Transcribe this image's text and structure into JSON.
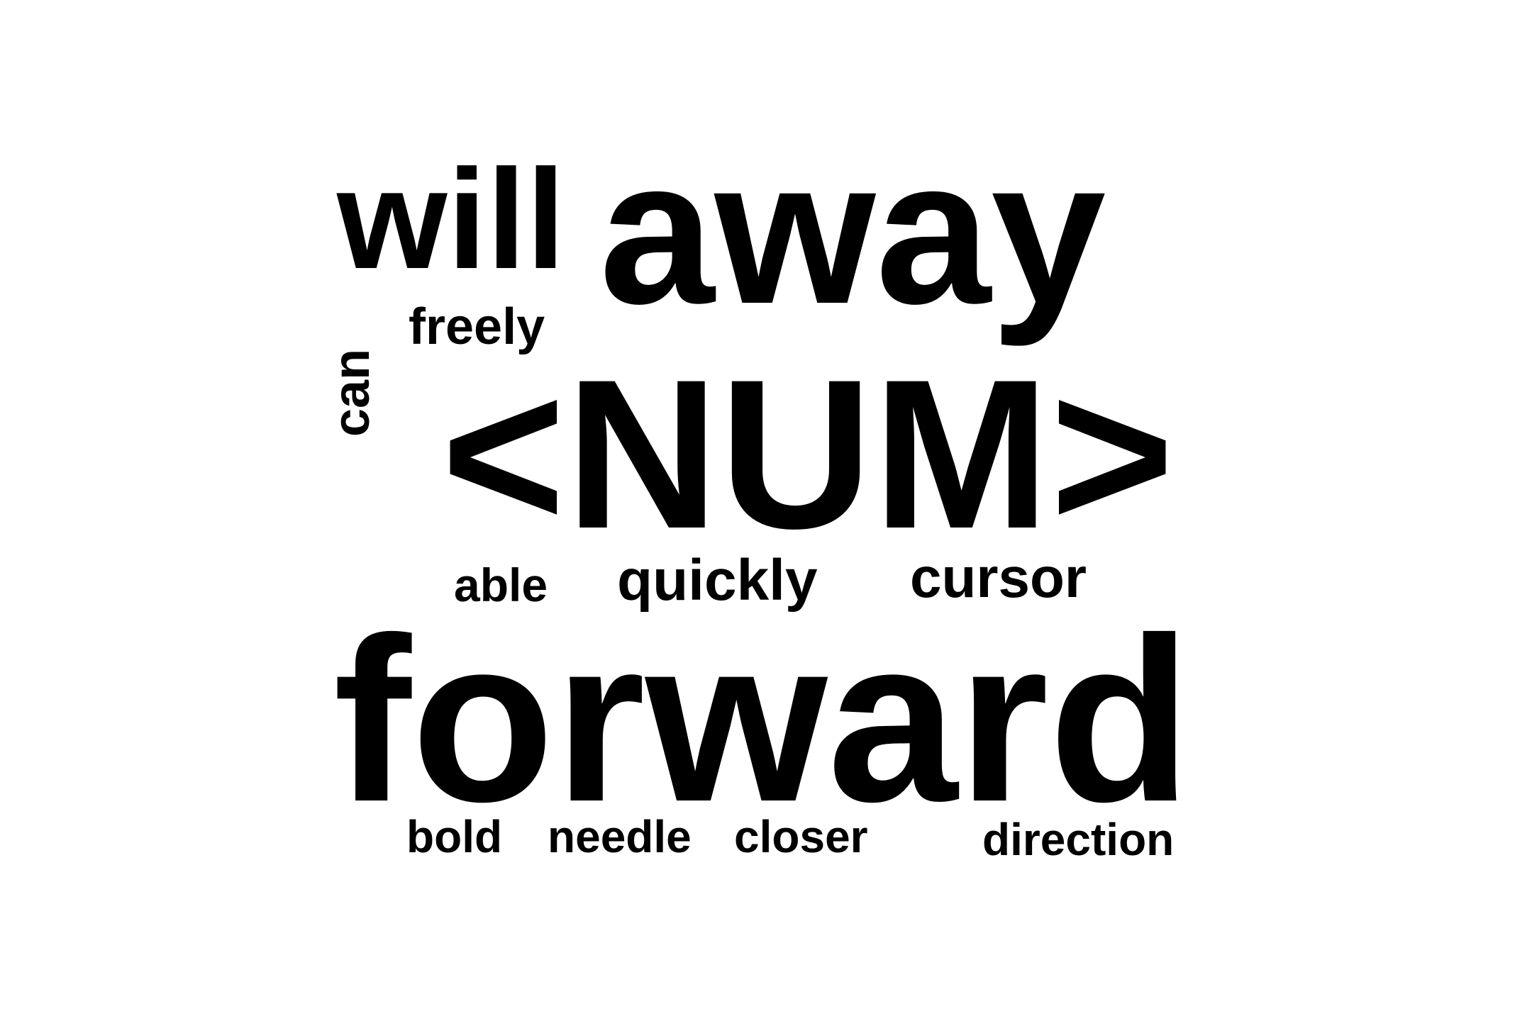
{
  "cloud": {
    "color": "#000000",
    "background": "#ffffff",
    "words": {
      "will": "will",
      "away": "away",
      "freely": "freely",
      "can": "can",
      "num": "<NUM>",
      "able": "able",
      "quickly": "quickly",
      "cursor": "cursor",
      "forward": "forward",
      "bold": "bold",
      "needle": "needle",
      "closer": "closer",
      "direction": "direction"
    }
  }
}
